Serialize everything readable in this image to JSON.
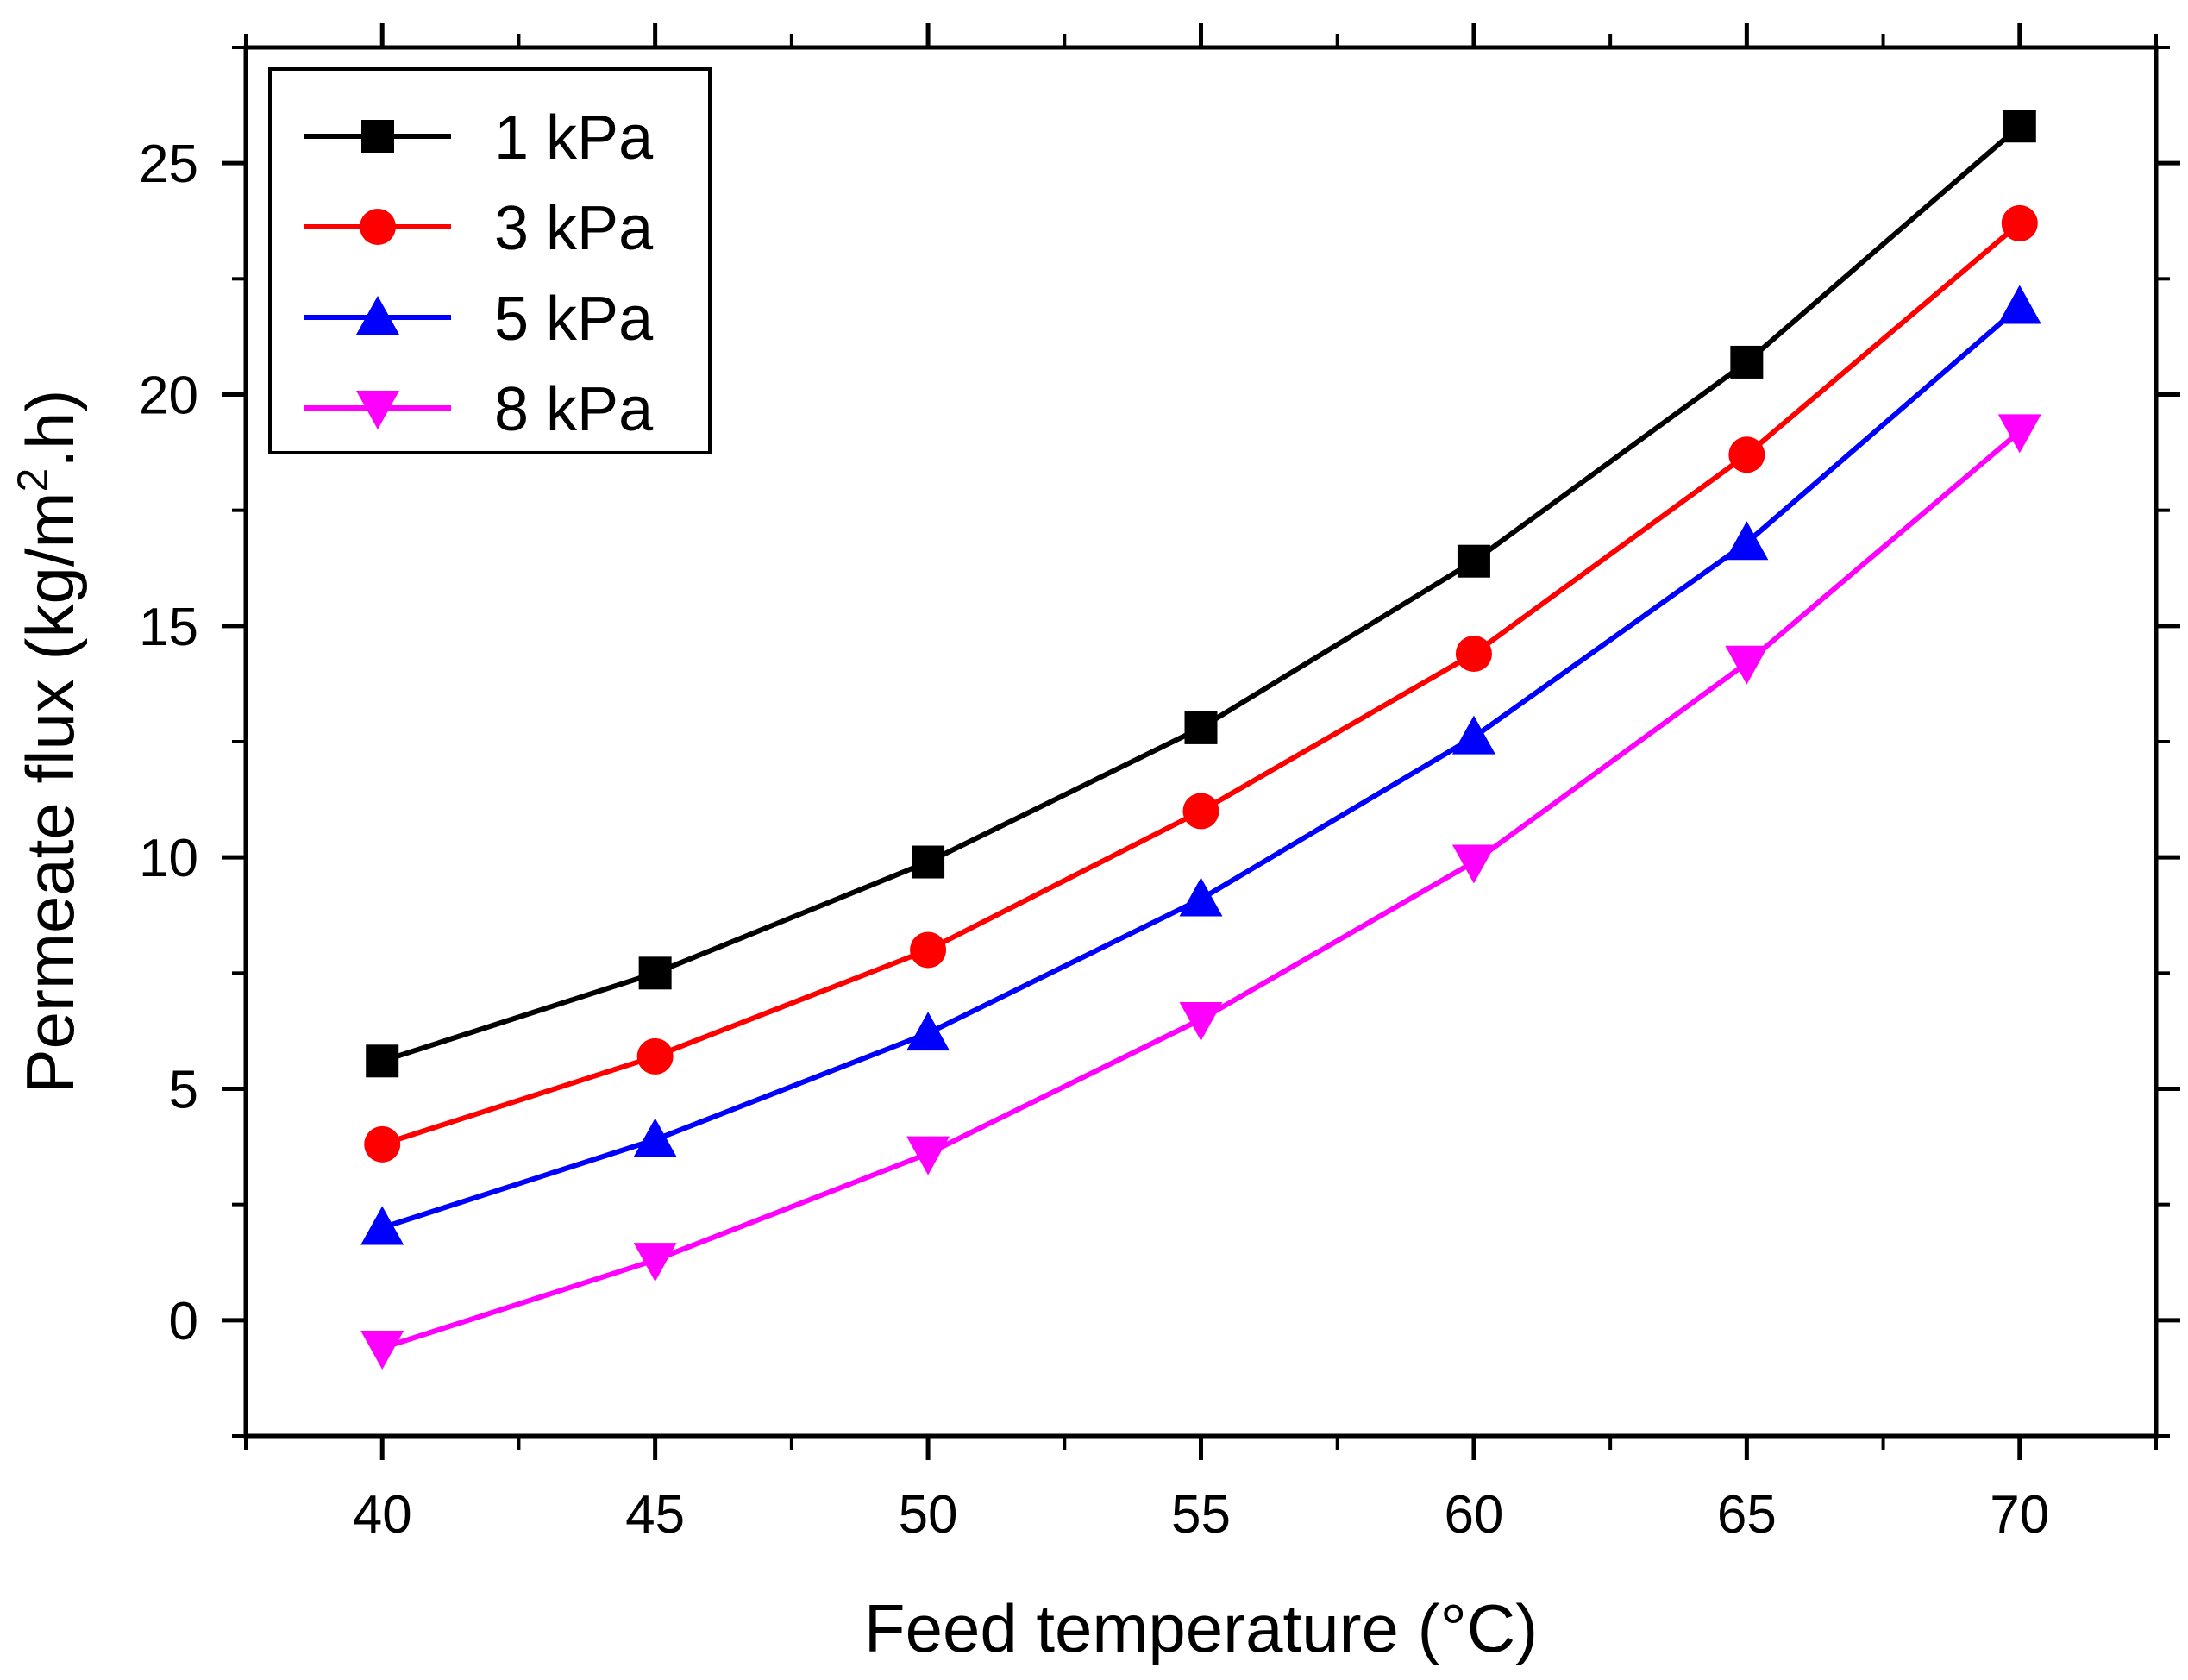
{
  "chart_data": {
    "type": "line",
    "title": "",
    "xlabel": "Feed temperature (°C)",
    "ylabel_main": "Permeate flux (kg/m",
    "ylabel_sup": "2",
    "ylabel_tail": ".h)",
    "xlim": [
      37.5,
      72.5
    ],
    "ylim": [
      -2.5,
      27.5
    ],
    "x": [
      40,
      45,
      50,
      55,
      60,
      65,
      70
    ],
    "x_ticks": [
      40,
      45,
      50,
      55,
      60,
      65,
      70
    ],
    "x_tick_labels": [
      "40",
      "45",
      "50",
      "55",
      "60",
      "65",
      "70"
    ],
    "y_ticks": [
      0,
      5,
      10,
      15,
      20,
      25
    ],
    "y_tick_labels": [
      "0",
      "5",
      "10",
      "15",
      "20",
      "25"
    ],
    "legend_position": "top-left",
    "series": [
      {
        "name": "1 kPa",
        "color": "#000000",
        "marker": "square",
        "values": [
          5.6,
          7.5,
          9.9,
          12.8,
          16.4,
          20.7,
          25.8
        ]
      },
      {
        "name": "3 kPa",
        "color": "#ff0000",
        "marker": "circle",
        "values": [
          3.8,
          5.7,
          8.0,
          11.0,
          14.4,
          18.7,
          23.7
        ]
      },
      {
        "name": "5 kPa",
        "color": "#0000ff",
        "marker": "triangle-up",
        "values": [
          2.0,
          3.9,
          6.2,
          9.1,
          12.6,
          16.8,
          21.9
        ]
      },
      {
        "name": "8 kPa",
        "color": "#ff00ff",
        "marker": "triangle-down",
        "values": [
          -0.6,
          1.3,
          3.6,
          6.5,
          9.9,
          14.2,
          19.2
        ]
      }
    ]
  }
}
